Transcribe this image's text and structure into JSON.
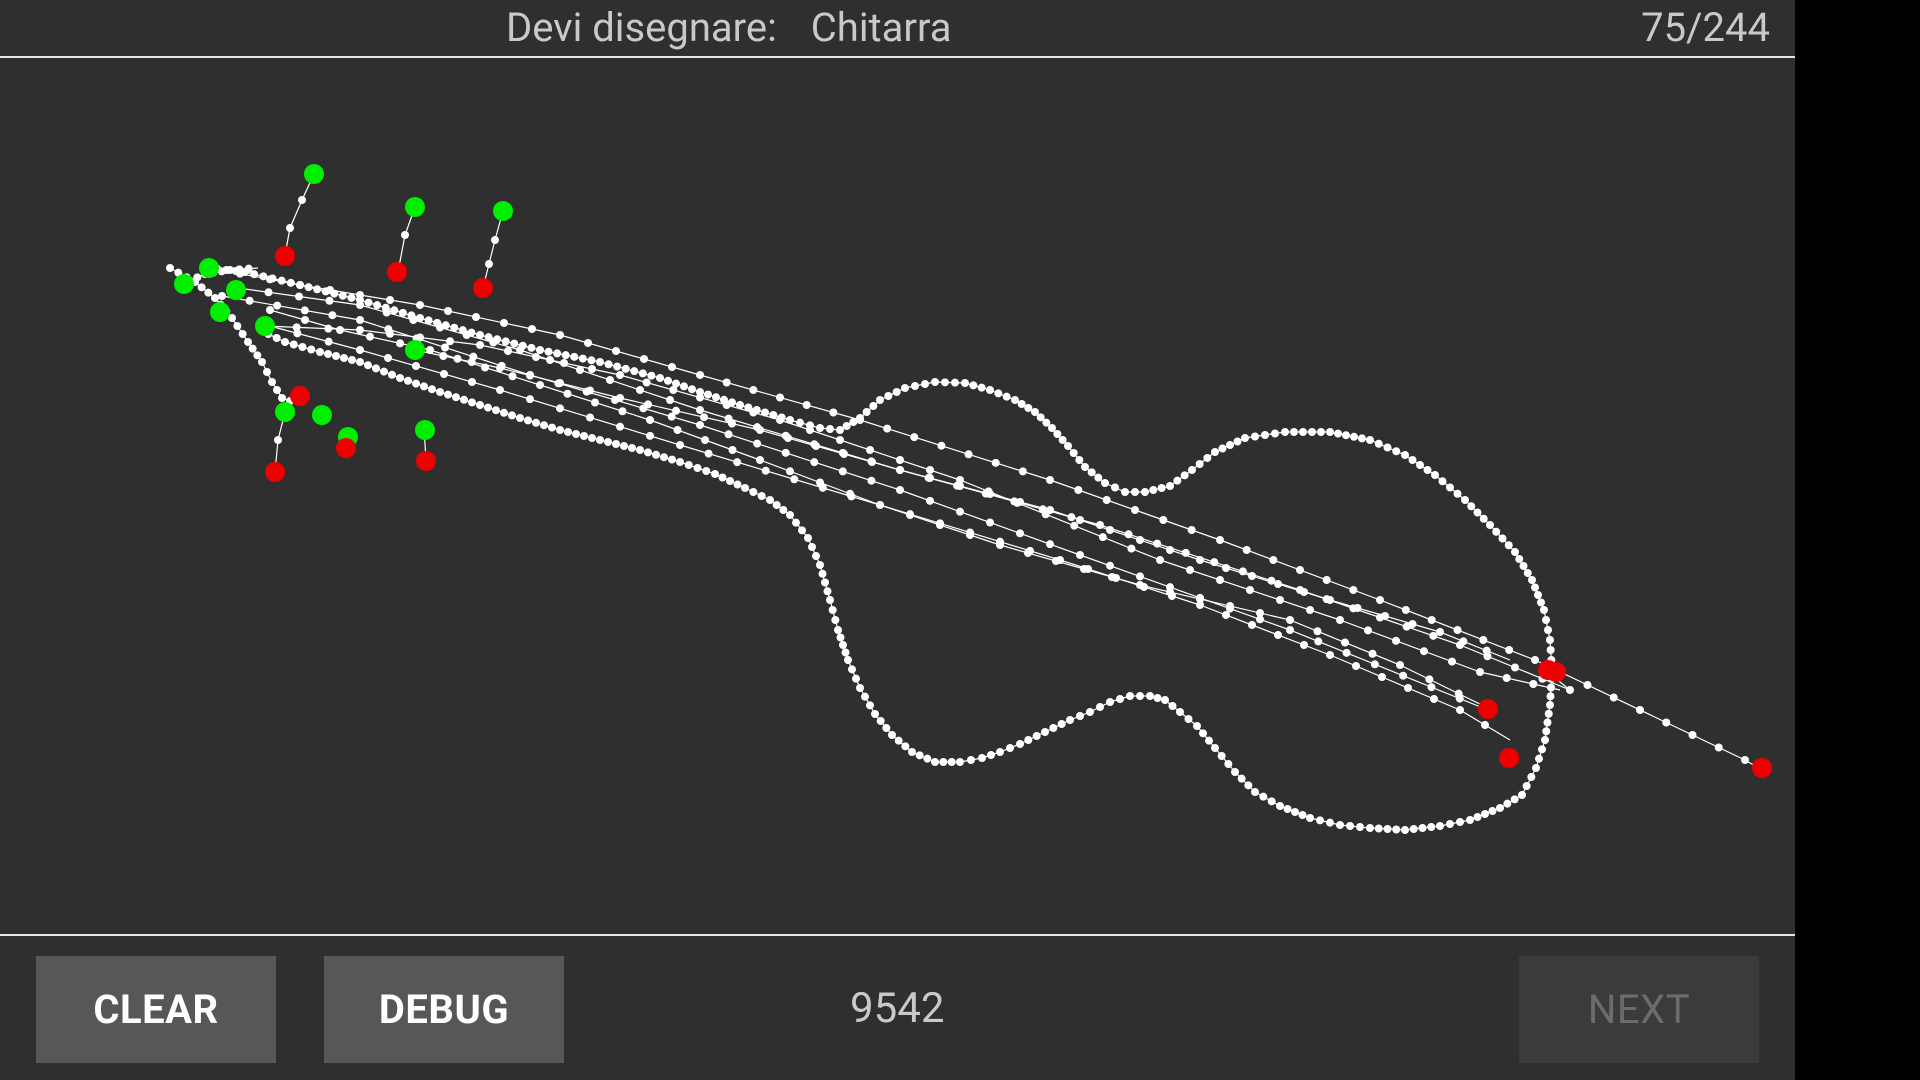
{
  "header": {
    "prompt_label": "Devi disegnare:",
    "prompt_word": "Chitarra",
    "progress": "75/244"
  },
  "footer": {
    "clear_label": "CLEAR",
    "debug_label": "DEBUG",
    "score": "9542",
    "next_label": "NEXT"
  },
  "colors": {
    "background": "#2f2f2f",
    "stroke": "#ffffff",
    "start_point": "#00ee00",
    "end_point": "#ee0000"
  }
}
